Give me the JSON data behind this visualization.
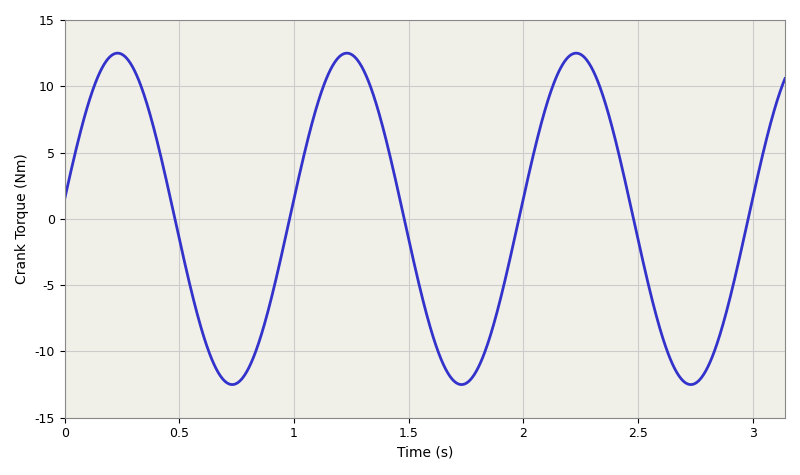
{
  "title": "",
  "xlabel": "Time (s)",
  "ylabel": "Crank Torque (Nm)",
  "xlim": [
    0,
    3.14159
  ],
  "ylim": [
    -15,
    15
  ],
  "xticks": [
    0,
    0.5,
    1,
    1.5,
    2,
    2.5,
    3
  ],
  "xtick_labels": [
    "0",
    "0.5",
    "1",
    "1.5",
    "2",
    "2.5",
    "3"
  ],
  "yticks": [
    -15,
    -10,
    -5,
    0,
    5,
    10,
    15
  ],
  "ytick_labels": [
    "-15",
    "-10",
    "-5",
    "0",
    "5",
    "10",
    "15"
  ],
  "line_color": "#3333cc",
  "line_width": 2.0,
  "amplitude": 12.5,
  "frequency": 2.0,
  "phase": -1.0,
  "background_color": "#f0f0e8",
  "grid_color": "#cccccc",
  "fig_bg_color": "#ffffff"
}
